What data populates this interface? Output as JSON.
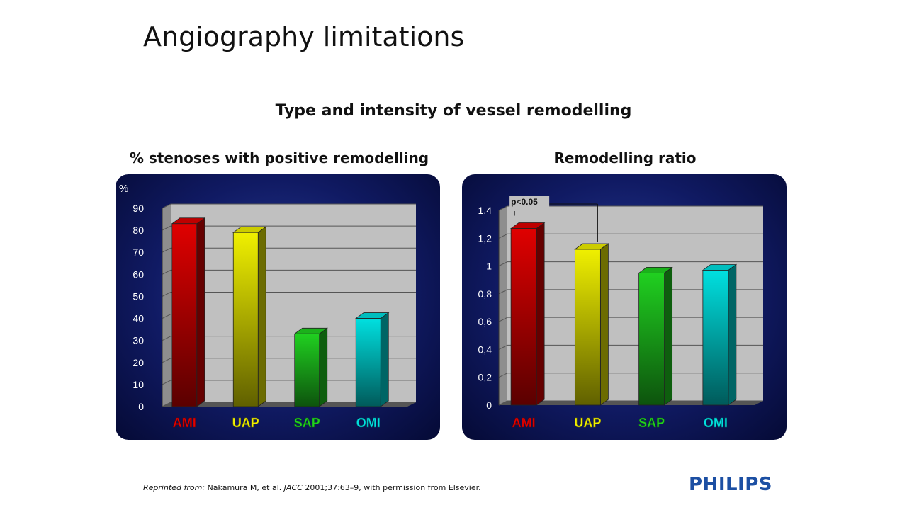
{
  "slide": {
    "title": "Angiography limitations",
    "subtitle": "Type and intensity of vessel remodelling",
    "footer_prefix": "Reprinted from:",
    "footer_text": " Nakamura M, et al. ",
    "footer_journal": "JACC",
    "footer_rest": " 2001;37:63–9, with permission from Elsevier.",
    "logo": "PHILIPS"
  },
  "colors": {
    "AMI": "#e00000",
    "UAP": "#f0f000",
    "SAP": "#20d020",
    "OMI": "#00e0e0"
  },
  "chart_data": [
    {
      "type": "bar",
      "title": "% stenoses with positive remodelling",
      "ylabel": "%",
      "categories": [
        "AMI",
        "UAP",
        "SAP",
        "OMI"
      ],
      "values": [
        83,
        79,
        33,
        40
      ],
      "ylim": [
        0,
        90
      ],
      "yticks": [
        "0",
        "10",
        "20",
        "30",
        "40",
        "50",
        "60",
        "70",
        "80",
        "90"
      ],
      "grid": true
    },
    {
      "type": "bar",
      "title": "Remodelling ratio",
      "ylabel": "",
      "categories": [
        "AMI",
        "UAP",
        "SAP",
        "OMI"
      ],
      "values": [
        1.27,
        1.12,
        0.95,
        0.97
      ],
      "ylim": [
        0,
        1.4
      ],
      "yticks": [
        "0",
        "0,2",
        "0,4",
        "0,6",
        "0,8",
        "1",
        "1,2",
        "1,4"
      ],
      "grid": true,
      "annotation": "p<0.05"
    }
  ]
}
